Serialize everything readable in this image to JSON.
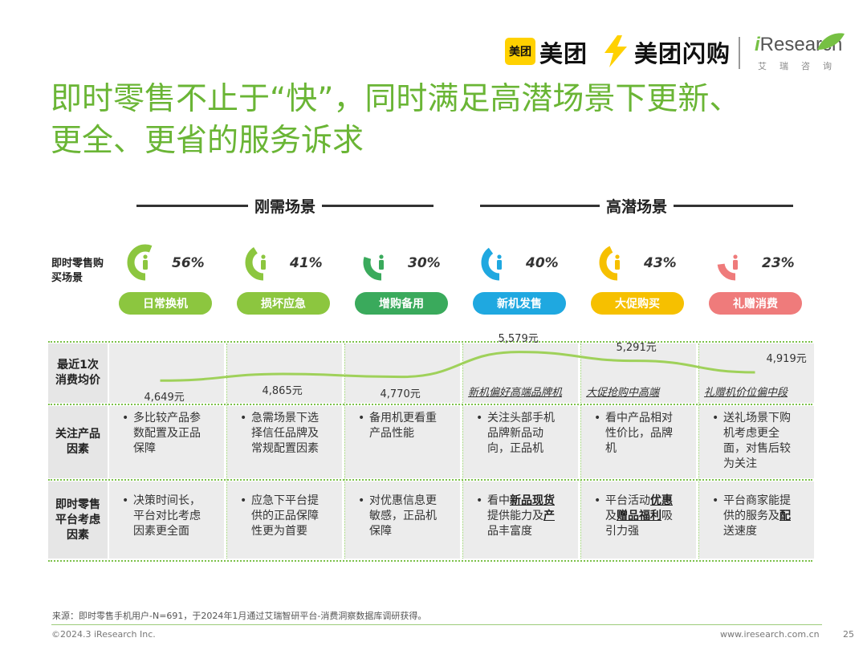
{
  "logos": {
    "meituan_box": "美团",
    "meituan": "美团",
    "shangou": "美团闪购",
    "iresearch_i": "i",
    "iresearch_rest": "Research",
    "iresearch_sub": "艾瑞咨询"
  },
  "title": {
    "line1": "即时零售不止于“快”，同时满足高潜场景下更新、",
    "line2": "更全、更省的服务诉求"
  },
  "sections": {
    "rigid": "刚需场景",
    "high_potential": "高潜场景"
  },
  "row_labels": {
    "scenario": "即时零售购买场景",
    "price": "最近1次消费均价",
    "product": "关注产品因素",
    "platform": "即时零售平台考虑因素"
  },
  "colors": {
    "green_dark": "#6ab535",
    "green": "#8cc63f",
    "teal_green": "#3aaa5c",
    "blue": "#1fa8e0",
    "yellow": "#f6c000",
    "pink": "#ef7b7b"
  },
  "scenarios": [
    {
      "label": "日常换机",
      "percent": "56%",
      "value": 0.56,
      "color": "#8cc63f"
    },
    {
      "label": "损坏应急",
      "percent": "41%",
      "value": 0.41,
      "color": "#8cc63f"
    },
    {
      "label": "增购备用",
      "percent": "30%",
      "value": 0.3,
      "color": "#3aaa5c"
    },
    {
      "label": "新机发售",
      "percent": "40%",
      "value": 0.4,
      "color": "#1fa8e0"
    },
    {
      "label": "大促购买",
      "percent": "43%",
      "value": 0.43,
      "color": "#f6c000"
    },
    {
      "label": "礼赠消费",
      "percent": "23%",
      "value": 0.23,
      "color": "#ef7b7b"
    }
  ],
  "prices": [
    {
      "value": "4,649元",
      "amount": 4649,
      "note": ""
    },
    {
      "value": "4,865元",
      "amount": 4865,
      "note": ""
    },
    {
      "value": "4,770元",
      "amount": 4770,
      "note": ""
    },
    {
      "value": "5,579元",
      "amount": 5579,
      "note": "新机偏好高端品牌机"
    },
    {
      "value": "5,291元",
      "amount": 5291,
      "note": "大促抢购中高端"
    },
    {
      "value": "4,919元",
      "amount": 4919,
      "note": "礼赠机价位偏中段"
    }
  ],
  "product_factors": [
    {
      "lines": [
        "多比较产品参",
        "数配置及正品",
        "保障"
      ]
    },
    {
      "lines": [
        "急需场景下选",
        "择信任品牌及",
        "常规配置因素"
      ]
    },
    {
      "lines": [
        "备用机更看重",
        "产品性能"
      ]
    },
    {
      "lines": [
        "关注头部手机",
        "品牌新品动",
        "向，正品机"
      ]
    },
    {
      "lines": [
        "看中产品相对",
        "性价比，品牌",
        "机"
      ]
    },
    {
      "lines": [
        "送礼场景下购",
        "机考虑更全",
        "面，对售后较",
        "为关注"
      ]
    }
  ],
  "platform_factors": [
    {
      "html_parts": [
        [
          "决策时间长，"
        ],
        [
          "平台对比考虑"
        ],
        [
          "因素更全面"
        ]
      ]
    },
    {
      "html_parts": [
        [
          "应急下平台提"
        ],
        [
          "供的正品保障"
        ],
        [
          "性更为首要"
        ]
      ]
    },
    {
      "html_parts": [
        [
          "对优惠信息更"
        ],
        [
          "敏感，正品机"
        ],
        [
          "保障"
        ]
      ]
    },
    {
      "html_parts": [
        [
          "看中",
          "新品现货"
        ],
        [
          "提供能力及",
          "产"
        ],
        [
          "品丰富度"
        ]
      ]
    },
    {
      "html_parts": [
        [
          "平台活动",
          "优惠"
        ],
        [
          "及",
          "赠品福利",
          "吸"
        ],
        [
          "引力强"
        ]
      ]
    },
    {
      "html_parts": [
        [
          "平台商家能提"
        ],
        [
          "供的服务及",
          "配"
        ],
        [
          "送速度"
        ]
      ]
    }
  ],
  "footer": {
    "source": "来源：即时零售手机用户-N=691，于2024年1月通过艾瑞智研平台-消费洞察数据库调研获得。",
    "copyright": "©2024.3 iResearch Inc.",
    "url": "www.iresearch.com.cn",
    "page": "25"
  }
}
